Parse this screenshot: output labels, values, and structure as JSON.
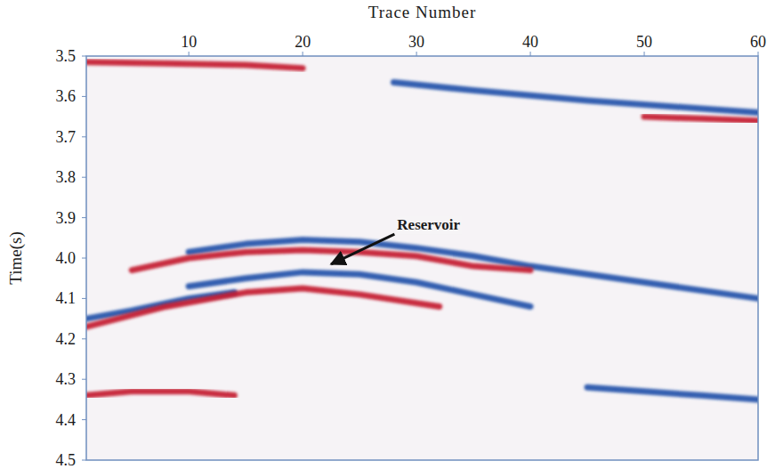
{
  "chart_data": {
    "type": "line",
    "title": "Trace Number",
    "y_label": "Time(s)",
    "xlim": [
      1,
      60
    ],
    "xticks": [
      10,
      20,
      30,
      40,
      50,
      60
    ],
    "ylim": [
      3.5,
      4.5
    ],
    "yticks": [
      3.5,
      3.6,
      3.7,
      3.8,
      3.9,
      {
        "value": 4,
        "label": "4.0"
      },
      4.1,
      4.2,
      4.3,
      4.4,
      4.5
    ],
    "grid": false,
    "series": [
      {
        "color": "#c3182c",
        "x": [
          1,
          8,
          15,
          20
        ],
        "values": [
          3.515,
          3.518,
          3.522,
          3.53
        ]
      },
      {
        "color": "#1f4fa8",
        "x": [
          28,
          35,
          45,
          55,
          60
        ],
        "values": [
          3.565,
          3.585,
          3.61,
          3.63,
          3.64
        ]
      },
      {
        "color": "#c3182c",
        "x": [
          50,
          55,
          60
        ],
        "values": [
          3.65,
          3.655,
          3.66
        ]
      },
      {
        "color": "#1f4fa8",
        "x": [
          10,
          15,
          20,
          25,
          30,
          35,
          40,
          50,
          60
        ],
        "values": [
          3.985,
          3.965,
          3.955,
          3.96,
          3.975,
          3.995,
          4.02,
          4.06,
          4.1
        ]
      },
      {
        "color": "#c3182c",
        "x": [
          5,
          10,
          15,
          20,
          25,
          30,
          35,
          40
        ],
        "values": [
          4.03,
          4.0,
          3.985,
          3.98,
          3.985,
          3.995,
          4.02,
          4.03
        ]
      },
      {
        "color": "#1f4fa8",
        "x": [
          10,
          15,
          20,
          25,
          30,
          35,
          40
        ],
        "values": [
          4.07,
          4.05,
          4.035,
          4.04,
          4.06,
          4.09,
          4.12
        ]
      },
      {
        "color": "#1f4fa8",
        "x": [
          1,
          5,
          10,
          14
        ],
        "values": [
          4.15,
          4.13,
          4.1,
          4.085
        ]
      },
      {
        "color": "#c3182c",
        "x": [
          1,
          8,
          15,
          20,
          25,
          32
        ],
        "values": [
          4.17,
          4.12,
          4.085,
          4.075,
          4.09,
          4.12
        ]
      },
      {
        "color": "#c3182c",
        "x": [
          1,
          5,
          10,
          14
        ],
        "values": [
          4.34,
          4.33,
          4.33,
          4.34
        ]
      },
      {
        "color": "#1f4fa8",
        "x": [
          45,
          50,
          55,
          60
        ],
        "values": [
          4.32,
          4.33,
          4.34,
          4.35
        ]
      }
    ],
    "annotations": [
      {
        "text": "Reservoir",
        "x": 22.5,
        "y": 4.015,
        "text_x": 28.3,
        "text_y": 3.93
      }
    ]
  }
}
